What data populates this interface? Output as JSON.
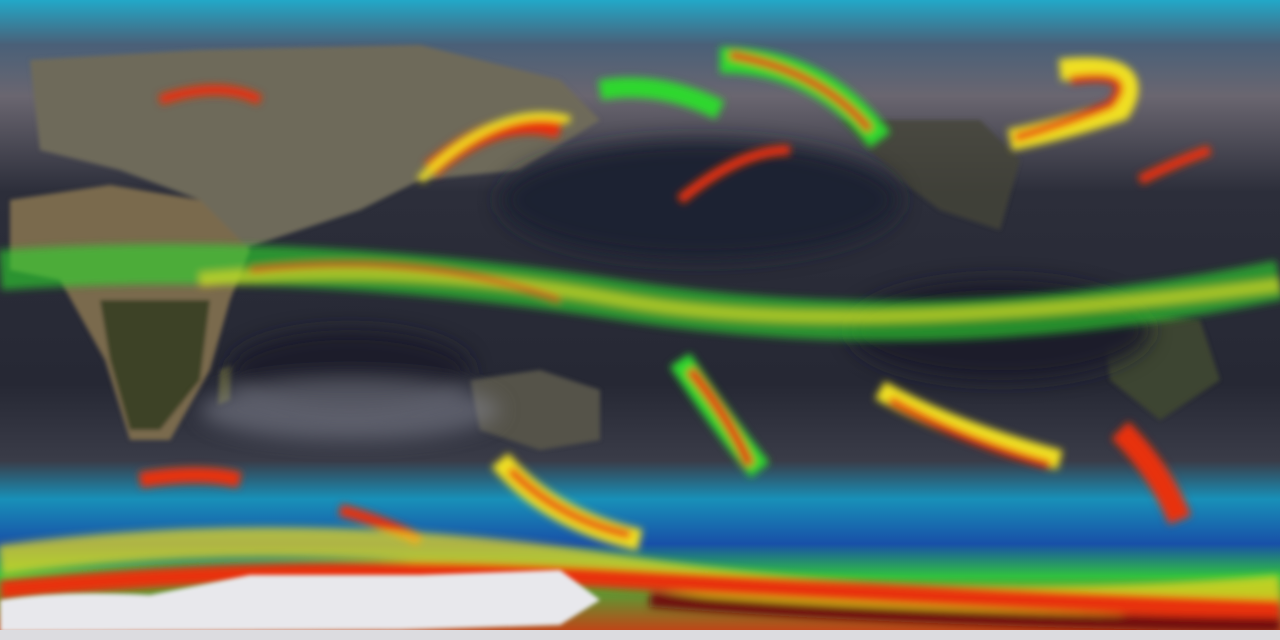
{
  "map": {
    "projection": "equirectangular",
    "view": "global",
    "colors": {
      "ocean_cloud": "#2a2c36",
      "ocean_dark": "#1c1e2a",
      "land_desert": "#8a7a5e",
      "land_vegetation": "#3a4028",
      "ice": "#e8e8ec",
      "precip_low": "#1ec8e0",
      "precip_light": "#1a3fa0",
      "precip_mid": "#2ed82e",
      "precip_high": "#f0e020",
      "precip_heavy": "#e83010",
      "precip_extreme": "#700808"
    }
  }
}
